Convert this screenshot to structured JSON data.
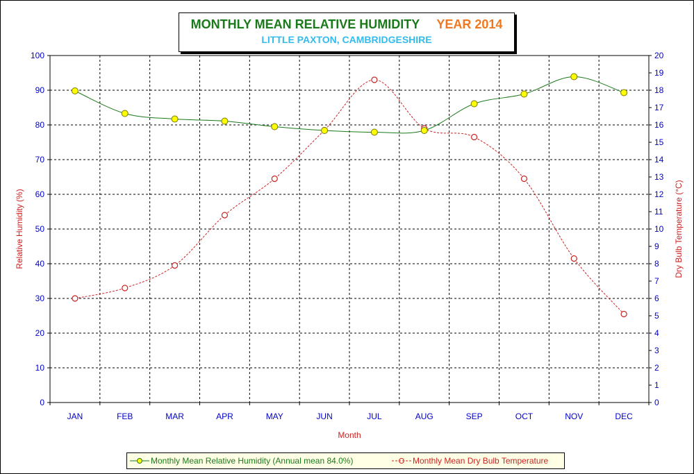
{
  "chart_data": {
    "type": "line",
    "title": "MONTHLY MEAN RELATIVE HUMIDITY",
    "title_year": "YEAR 2014",
    "subtitle": "LITTLE PAXTON, CAMBRIDGESHIRE",
    "xlabel": "Month",
    "ylabel_left": "Relative Humidity (%)",
    "ylabel_right": "Dry Bulb Temperature (°C)",
    "categories": [
      "JAN",
      "FEB",
      "MAR",
      "APR",
      "MAY",
      "JUN",
      "JUL",
      "AUG",
      "SEP",
      "OCT",
      "NOV",
      "DEC"
    ],
    "ylim_left": [
      0,
      100
    ],
    "ylim_right": [
      0,
      20
    ],
    "yticks_left": [
      "0",
      "10",
      "20",
      "30",
      "40",
      "50",
      "60",
      "70",
      "80",
      "90",
      "100"
    ],
    "yticks_right": [
      "0",
      "1",
      "2",
      "3",
      "4",
      "5",
      "6",
      "7",
      "8",
      "9",
      "10",
      "11",
      "12",
      "13",
      "14",
      "15",
      "16",
      "17",
      "18",
      "19",
      "20"
    ],
    "grid": true,
    "legend_position": "bottom",
    "series": [
      {
        "name": "Monthly Mean Relative Humidity (Annual mean 84.0%)",
        "axis": "left",
        "color": "#1a7a1a",
        "marker_fill": "#ffff00",
        "values": [
          89.8,
          83.3,
          81.7,
          81.1,
          79.5,
          78.4,
          77.9,
          78.4,
          86.1,
          88.9,
          93.9,
          89.3
        ]
      },
      {
        "name": "Monthly Mean Dry Bulb Temperature",
        "axis": "right",
        "color": "#cc2222",
        "marker_fill": "none",
        "values": [
          6.0,
          6.6,
          7.9,
          10.8,
          12.9,
          15.7,
          18.6,
          15.8,
          15.3,
          12.9,
          8.3,
          5.1
        ]
      }
    ]
  }
}
